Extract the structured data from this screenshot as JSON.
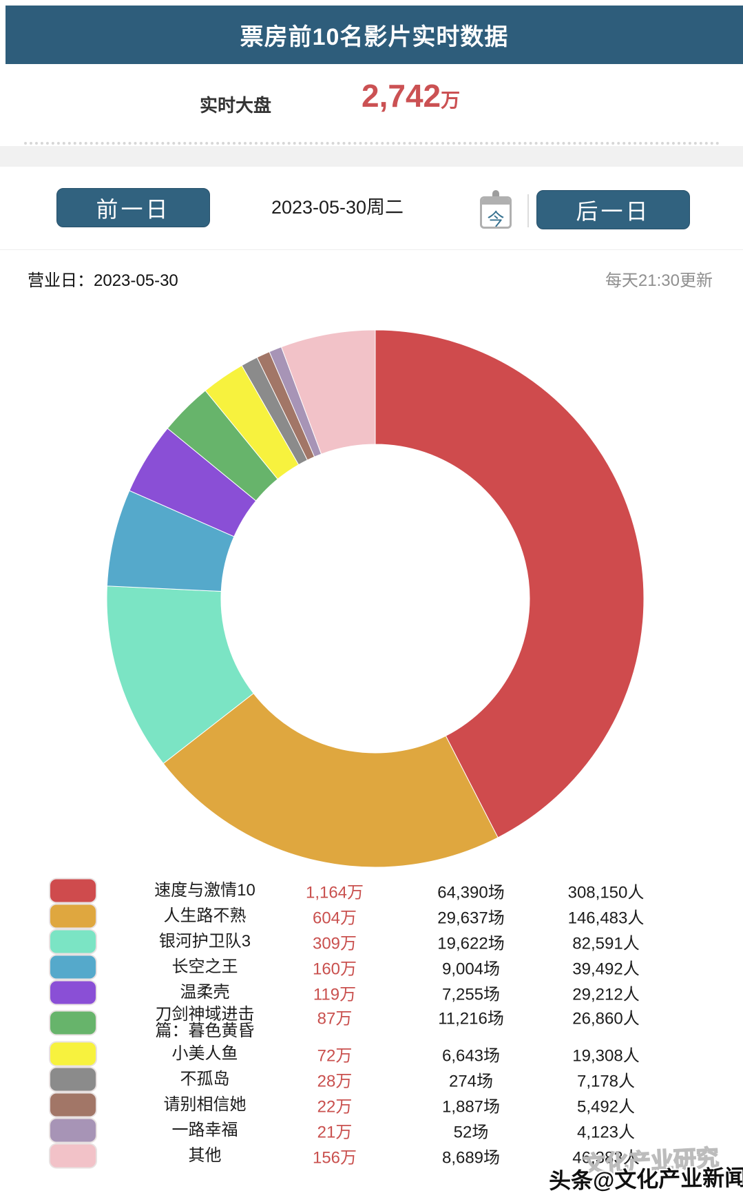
{
  "header": {
    "title": "票房前10名影片实时数据"
  },
  "realtime": {
    "label": "实时大盘",
    "value": "2,742",
    "unit": "万"
  },
  "nav": {
    "prev_label": "前一日",
    "date_label": "2023-05-30周二",
    "today_char": "今",
    "next_label": "后一日"
  },
  "info": {
    "business_day": "营业日：2023-05-30",
    "update_note": "每天21:30更新"
  },
  "colors": {
    "header_teal": "#2e5d7b",
    "button_teal": "#31627f",
    "value_red": "#c9504e",
    "band_gray": "#f1f1f1"
  },
  "chart_data": {
    "type": "pie",
    "donut": true,
    "start_angle_deg": -90,
    "direction": "clockwise",
    "legend_position": "bottom",
    "total": 2742,
    "total_label": "实时大盘",
    "total_display": "2,742万",
    "categories": [
      "速度与激情10",
      "人生路不熟",
      "银河护卫队3",
      "长空之王",
      "温柔壳",
      "刀剑神域进击篇：暮色黄昏",
      "小美人鱼",
      "不孤岛",
      "请别相信她",
      "一路幸福",
      "其他"
    ],
    "values": [
      1164,
      604,
      309,
      160,
      119,
      87,
      72,
      28,
      22,
      21,
      156
    ],
    "colors": [
      "#cf4b4d",
      "#dfa73f",
      "#7be4c4",
      "#55a9cb",
      "#8a4fd6",
      "#67b46b",
      "#f7f23e",
      "#8b8b8b",
      "#a27667",
      "#a794b6",
      "#f2c2c8"
    ],
    "rows": [
      {
        "name_lines": [
          "速度与激情10"
        ],
        "value": "1,164万",
        "sessions": "64,390场",
        "people": "308,150人",
        "color": "#cf4b4d"
      },
      {
        "name_lines": [
          "人生路不熟"
        ],
        "value": "604万",
        "sessions": "29,637场",
        "people": "146,483人",
        "color": "#dfa73f"
      },
      {
        "name_lines": [
          "银河护卫队3"
        ],
        "value": "309万",
        "sessions": "19,622场",
        "people": "82,591人",
        "color": "#7be4c4"
      },
      {
        "name_lines": [
          "长空之王"
        ],
        "value": "160万",
        "sessions": "9,004场",
        "people": "39,492人",
        "color": "#55a9cb"
      },
      {
        "name_lines": [
          "温柔壳"
        ],
        "value": "119万",
        "sessions": "7,255场",
        "people": "29,212人",
        "color": "#8a4fd6"
      },
      {
        "name_lines": [
          "刀剑神域进击",
          "篇：暮色黄昏"
        ],
        "value": "87万",
        "sessions": "11,216场",
        "people": "26,860人",
        "color": "#67b46b"
      },
      {
        "name_lines": [
          "小美人鱼"
        ],
        "value": "72万",
        "sessions": "6,643场",
        "people": "19,308人",
        "color": "#f7f23e"
      },
      {
        "name_lines": [
          "不孤岛"
        ],
        "value": "28万",
        "sessions": "274场",
        "people": "7,178人",
        "color": "#8b8b8b"
      },
      {
        "name_lines": [
          "请别相信她"
        ],
        "value": "22万",
        "sessions": "1,887场",
        "people": "5,492人",
        "color": "#a27667"
      },
      {
        "name_lines": [
          "一路幸福"
        ],
        "value": "21万",
        "sessions": "52场",
        "people": "4,123人",
        "color": "#a794b6"
      },
      {
        "name_lines": [
          "其他"
        ],
        "value": "156万",
        "sessions": "8,689场",
        "people": "46,383人",
        "color": "#f2c2c8"
      }
    ]
  },
  "watermark": {
    "ghost": "文化产业研究",
    "main": "头条@文化产业新闻"
  }
}
